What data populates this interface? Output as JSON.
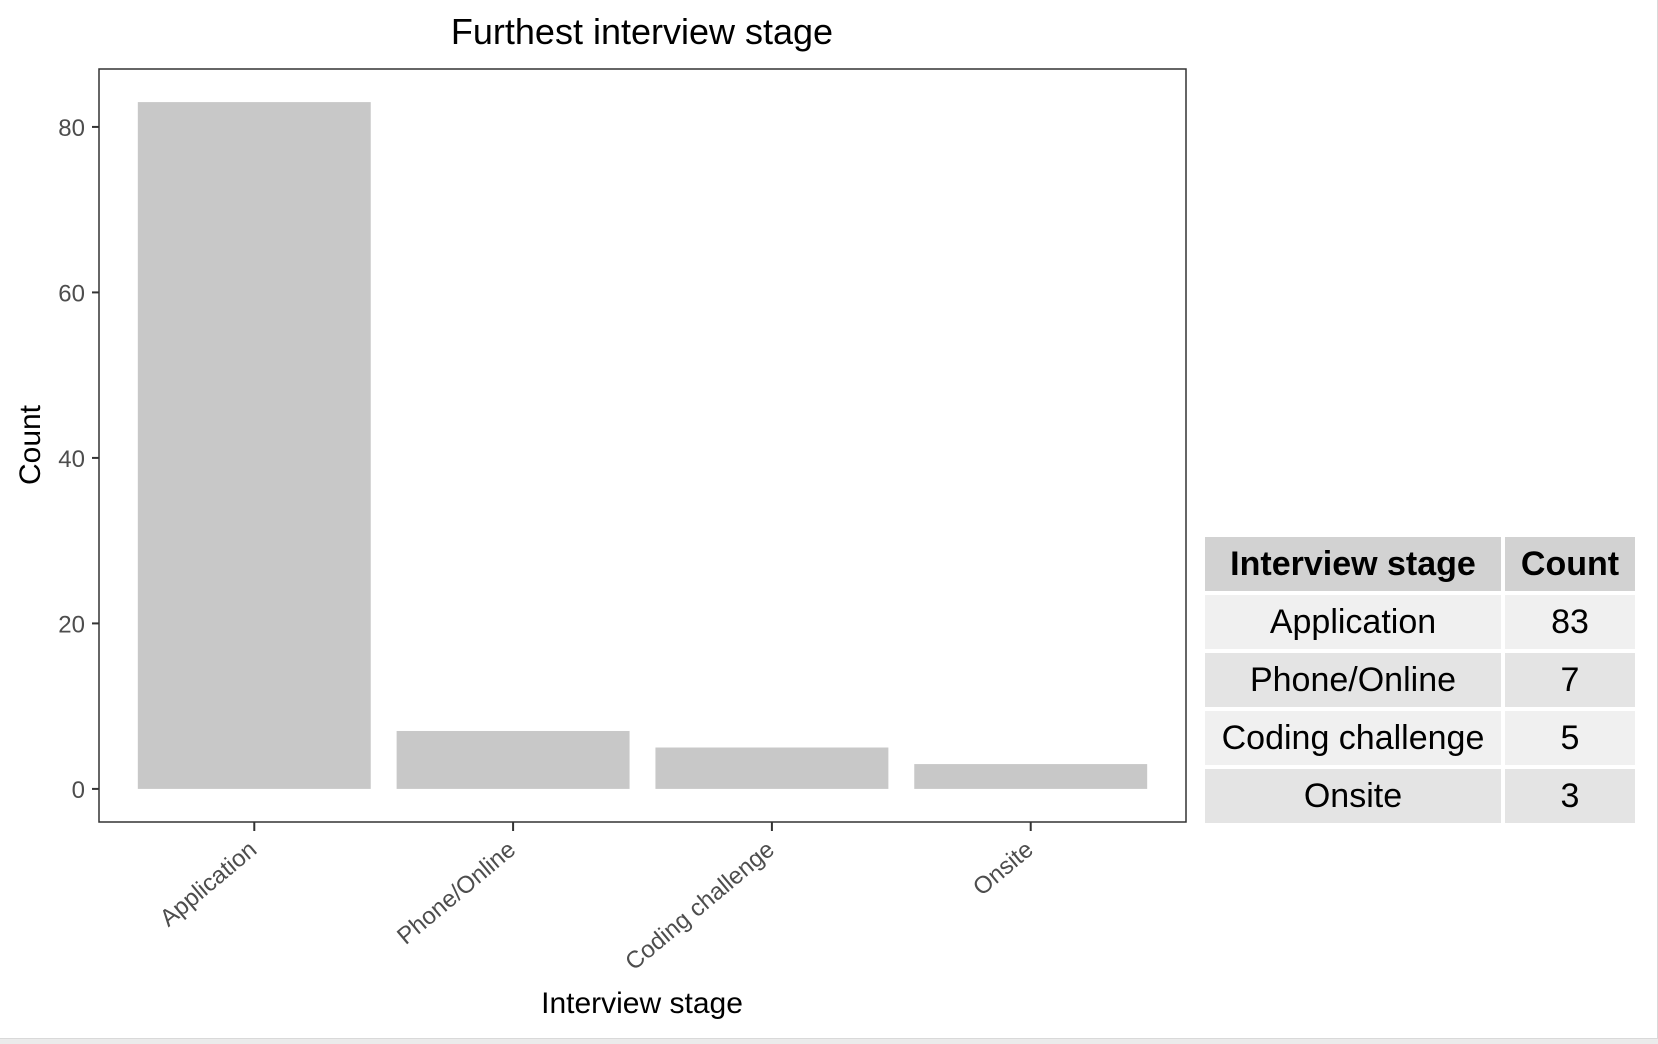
{
  "chart_data": {
    "type": "bar",
    "title": "Furthest interview stage",
    "xlabel": "Interview stage",
    "ylabel": "Count",
    "categories": [
      "Application",
      "Phone/Online",
      "Coding challenge",
      "Onsite"
    ],
    "values": [
      83,
      7,
      5,
      3
    ],
    "ylim": [
      -4,
      87
    ],
    "yticks": [
      0,
      20,
      40,
      60,
      80
    ],
    "grid": false,
    "bar_color": "#c8c8c8"
  },
  "table": {
    "headers": [
      "Interview stage",
      "Count"
    ],
    "rows": [
      [
        "Application",
        "83"
      ],
      [
        "Phone/Online",
        "7"
      ],
      [
        "Coding challenge",
        "5"
      ],
      [
        "Onsite",
        "3"
      ]
    ]
  }
}
